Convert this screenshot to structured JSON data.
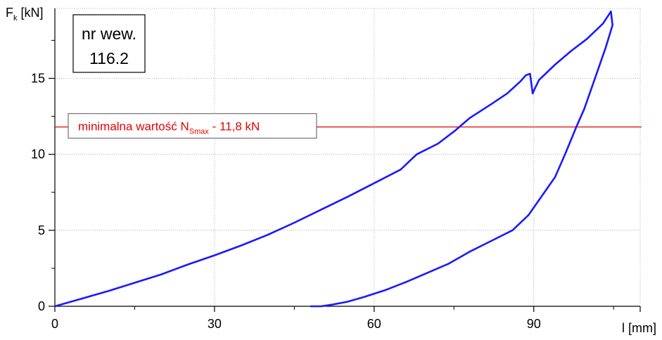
{
  "chart_data": {
    "type": "line",
    "title": "",
    "xlabel": "l [mm]",
    "ylabel_main": "F",
    "ylabel_sub": "k",
    "ylabel_unit": " [kN]",
    "xlim": [
      0,
      110
    ],
    "ylim": [
      0,
      19.6
    ],
    "x_ticks": [
      0,
      30,
      60,
      90
    ],
    "y_ticks": [
      0,
      5,
      10,
      15
    ],
    "grid": true,
    "box_line1": "nr wew.",
    "box_line2": "116.2",
    "threshold": {
      "value": 11.8,
      "label_pre": "minimalna wartość  N",
      "label_sub": "Smax",
      "label_post": " - 11,8 kN",
      "color": "#e60000"
    },
    "series": [
      {
        "color": "#1a1aff",
        "points": [
          [
            0,
            0
          ],
          [
            5,
            0.5
          ],
          [
            10,
            1.0
          ],
          [
            15,
            1.55
          ],
          [
            20,
            2.1
          ],
          [
            25,
            2.75
          ],
          [
            30,
            3.35
          ],
          [
            35,
            4.0
          ],
          [
            40,
            4.7
          ],
          [
            45,
            5.5
          ],
          [
            50,
            6.35
          ],
          [
            55,
            7.2
          ],
          [
            60,
            8.1
          ],
          [
            65,
            9.0
          ],
          [
            68,
            10.0
          ],
          [
            72,
            10.7
          ],
          [
            75,
            11.5
          ],
          [
            78,
            12.4
          ],
          [
            82,
            13.3
          ],
          [
            85,
            14.0
          ],
          [
            87.5,
            14.8
          ],
          [
            88.5,
            15.2
          ],
          [
            89.3,
            15.3
          ],
          [
            89.8,
            14.0
          ],
          [
            90.3,
            14.4
          ],
          [
            91,
            14.9
          ],
          [
            94,
            15.9
          ],
          [
            97,
            16.8
          ],
          [
            100,
            17.6
          ],
          [
            103,
            18.6
          ],
          [
            104.5,
            19.4
          ],
          [
            104.8,
            18.5
          ],
          [
            103.5,
            17.0
          ],
          [
            102,
            15.5
          ],
          [
            99.5,
            13.0
          ],
          [
            98,
            11.8
          ],
          [
            96,
            10.1
          ],
          [
            94,
            8.5
          ],
          [
            91,
            7.0
          ],
          [
            89,
            6.0
          ],
          [
            86,
            5.0
          ],
          [
            82,
            4.3
          ],
          [
            78,
            3.6
          ],
          [
            74,
            2.8
          ],
          [
            70,
            2.2
          ],
          [
            66,
            1.6
          ],
          [
            62,
            1.05
          ],
          [
            58,
            0.6
          ],
          [
            55,
            0.3
          ],
          [
            52,
            0.1
          ],
          [
            50,
            0.0
          ],
          [
            48,
            0.0
          ]
        ]
      }
    ]
  }
}
